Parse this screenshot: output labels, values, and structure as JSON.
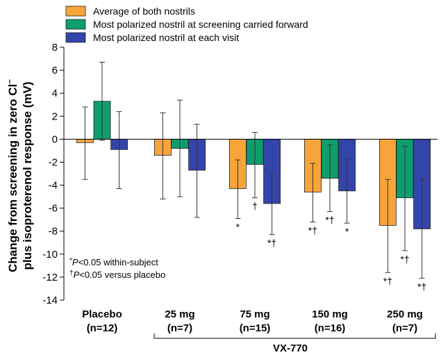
{
  "chart_data": {
    "type": "bar",
    "ylabel_line1": "Change from screening in zero Cl",
    "ylabel_sup": "–",
    "ylabel_line2": "plus isoproterenol response (mV)",
    "ylim": [
      -14,
      8
    ],
    "yticks": [
      8,
      6,
      4,
      2,
      0,
      -2,
      -4,
      -6,
      -8,
      -10,
      -12,
      -14
    ],
    "grid": false,
    "legend_position": "top-left",
    "categories": [
      {
        "line1": "Placebo",
        "line2": "(n=12)"
      },
      {
        "line1": "25 mg",
        "line2": "(n=7)"
      },
      {
        "line1": "75 mg",
        "line2": "(n=15)"
      },
      {
        "line1": "150 mg",
        "line2": "(n=16)"
      },
      {
        "line1": "250 mg",
        "line2": "(n=7)"
      }
    ],
    "group_label": "VX-770",
    "series": [
      {
        "name": "Average of both nostrils",
        "color": "#F7A43A",
        "values": [
          -0.3,
          -1.4,
          -4.3,
          -4.6,
          -7.5
        ],
        "err_low": [
          -3.5,
          -5.2,
          -6.9,
          -7.2,
          -11.6
        ],
        "err_high": [
          2.8,
          2.3,
          -1.8,
          -2.1,
          -3.5
        ],
        "sig": [
          "",
          "",
          "*",
          "*†",
          "*†"
        ]
      },
      {
        "name": "Most polarized nostril at screening carried forward",
        "color": "#0E9E6E",
        "values": [
          3.3,
          -0.8,
          -2.2,
          -3.4,
          -5.1
        ],
        "err_low": [
          -0.1,
          -5.0,
          -5.1,
          -6.3,
          -9.7
        ],
        "err_high": [
          6.7,
          3.4,
          0.6,
          -0.5,
          -0.6
        ],
        "sig": [
          "",
          "",
          "†",
          "*†",
          "*†"
        ]
      },
      {
        "name": "Most polarized nostril at each visit",
        "color": "#3344AA",
        "values": [
          -0.9,
          -2.7,
          -5.6,
          -4.5,
          -7.8
        ],
        "err_low": [
          -4.3,
          -6.8,
          -8.3,
          -7.3,
          -12.1
        ],
        "err_high": [
          2.4,
          1.3,
          -2.9,
          -1.8,
          -3.5
        ],
        "sig": [
          "",
          "",
          "*†",
          "*",
          "*†"
        ]
      }
    ],
    "notes": [
      {
        "sym": "*",
        "italic": "P",
        "rest": "<0.05 within-subject"
      },
      {
        "sym": "†",
        "italic": "P",
        "rest": "<0.05 versus placebo"
      }
    ]
  }
}
